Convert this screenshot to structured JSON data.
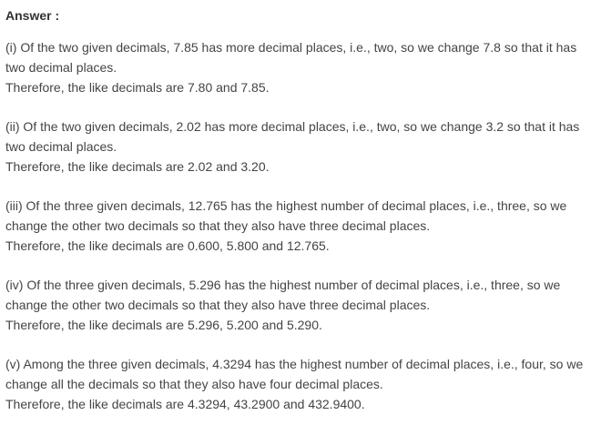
{
  "heading": "Answer :",
  "answers": [
    {
      "line1": "(i) Of the two given decimals, 7.85 has more decimal places, i.e., two, so we change 7.8 so that it has",
      "line2": "two decimal places.",
      "line3": "Therefore, the like decimals are 7.80 and 7.85."
    },
    {
      "line1": "(ii) Of the two given decimals, 2.02 has more decimal places, i.e., two, so we change 3.2 so that it has",
      "line2": "two decimal places.",
      "line3": "Therefore, the like decimals are 2.02 and 3.20."
    },
    {
      "line1": "(iii) Of the three given decimals, 12.765 has the highest number of decimal places, i.e., three, so we",
      "line2": "change the other two decimals so that they also have three decimal places.",
      "line3": "Therefore, the like decimals are 0.600, 5.800 and 12.765."
    },
    {
      "line1": "(iv) Of the three given decimals, 5.296 has the highest number of decimal places, i.e., three, so we",
      "line2": "change the other two decimals so that they also have three decimal places.",
      "line3": "Therefore, the like decimals are 5.296, 5.200 and 5.290."
    },
    {
      "line1": "(v) Among the three given decimals, 4.3294 has the highest number of decimal places, i.e., four, so we",
      "line2": "change all the decimals so that they also have four decimal places.",
      "line3": "Therefore, the like decimals are 4.3294, 43.2900 and 432.9400."
    }
  ]
}
